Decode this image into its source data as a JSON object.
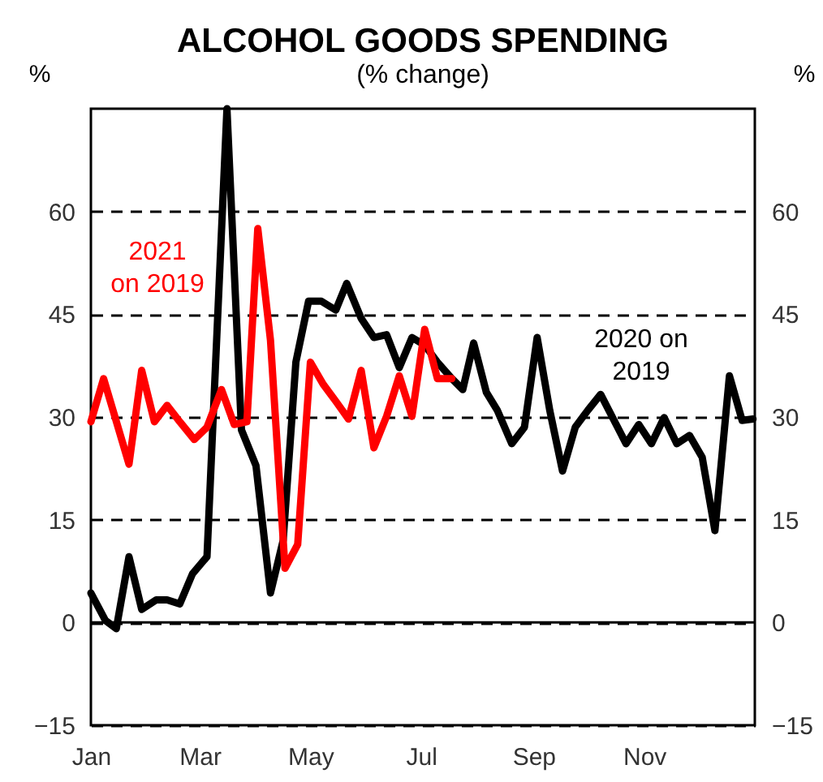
{
  "chart_data": {
    "type": "line",
    "title": "ALCOHOL GOODS SPENDING",
    "subtitle": "(% change)",
    "ylabel": "%",
    "y2label": "%",
    "xlim": [
      "2020-01-01",
      "2021-01-01"
    ],
    "xticks": [
      {
        "value": "2020-01-01",
        "label": "Jan"
      },
      {
        "value": "2020-03-01",
        "label": "Mar"
      },
      {
        "value": "2020-05-01",
        "label": "May"
      },
      {
        "value": "2020-07-01",
        "label": "Jul"
      },
      {
        "value": "2020-09-01",
        "label": "Sep"
      },
      {
        "value": "2020-11-01",
        "label": "Nov"
      }
    ],
    "ylim": [
      -15,
      75
    ],
    "yticks": [
      -15,
      0,
      15,
      30,
      45,
      60
    ],
    "y2lim": [
      -15,
      75
    ],
    "y2ticks": [
      -15,
      0,
      15,
      30,
      45,
      60
    ],
    "grid": "y",
    "legend": false,
    "marker": "none",
    "line_style": "solid",
    "ref_lines": [
      {
        "axis": "y",
        "value": 0,
        "color": "#000000",
        "line_style": "solid"
      }
    ],
    "series": [
      {
        "name": "2020 on\n2019",
        "color": "#000000",
        "x": [
          "2020-01-01",
          "2020-01-09",
          "2020-01-15",
          "2020-01-22",
          "2020-01-29",
          "2020-02-06",
          "2020-02-12",
          "2020-02-19",
          "2020-02-26",
          "2020-03-05",
          "2020-03-16",
          "2020-03-24",
          "2020-04-01",
          "2020-04-09",
          "2020-04-16",
          "2020-04-23",
          "2020-04-30",
          "2020-05-07",
          "2020-05-15",
          "2020-05-21",
          "2020-05-29",
          "2020-06-05",
          "2020-06-12",
          "2020-06-19",
          "2020-06-26",
          "2020-07-03",
          "2020-07-10",
          "2020-07-18",
          "2020-07-24",
          "2020-07-30",
          "2020-08-06",
          "2020-08-12",
          "2020-08-20",
          "2020-08-27",
          "2020-09-03",
          "2020-09-10",
          "2020-09-17",
          "2020-09-24",
          "2020-10-01",
          "2020-10-08",
          "2020-10-15",
          "2020-10-22",
          "2020-10-29",
          "2020-11-05",
          "2020-11-12",
          "2020-11-19",
          "2020-11-26",
          "2020-12-03",
          "2020-12-10",
          "2020-12-18",
          "2020-12-25",
          "2020-12-31"
        ],
        "values": [
          4.3,
          0.3,
          -0.9,
          9.6,
          1.9,
          3.3,
          3.3,
          2.7,
          7.1,
          9.6,
          75,
          28.1,
          22.9,
          4.3,
          12,
          38,
          46.9,
          46.9,
          45.6,
          49.5,
          44.4,
          41.6,
          42,
          37.2,
          41.6,
          40.5,
          38,
          35.6,
          34,
          40.8,
          33.6,
          31,
          26.1,
          28.5,
          41.6,
          30.9,
          22.1,
          28.5,
          31,
          33.3,
          29.7,
          26.1,
          28.9,
          26.1,
          29.9,
          26.1,
          27.3,
          24.1,
          13.4,
          36,
          29.5,
          29.7
        ]
      },
      {
        "name": "2021\non 2019",
        "color": "#ff0000",
        "x": [
          "2020-01-01",
          "2020-01-08",
          "2020-01-22",
          "2020-01-29",
          "2020-02-05",
          "2020-02-12",
          "2020-02-19",
          "2020-02-27",
          "2020-03-05",
          "2020-03-13",
          "2020-03-20",
          "2020-03-27",
          "2020-04-02",
          "2020-04-09",
          "2020-04-17",
          "2020-04-24",
          "2020-05-01",
          "2020-05-08",
          "2020-05-15",
          "2020-05-22",
          "2020-05-29",
          "2020-06-05",
          "2020-06-12",
          "2020-06-19",
          "2020-06-26",
          "2020-07-03",
          "2020-07-10",
          "2020-07-18"
        ],
        "values": [
          29.3,
          35.6,
          23.1,
          36.8,
          29.3,
          31.7,
          29.3,
          26.7,
          28.5,
          34,
          28.9,
          29.3,
          57.5,
          41.2,
          7.9,
          11.4,
          38,
          34.8,
          32.3,
          29.7,
          36.8,
          25.5,
          30.1,
          36,
          30.1,
          42.8,
          35.6,
          35.6
        ]
      }
    ]
  }
}
